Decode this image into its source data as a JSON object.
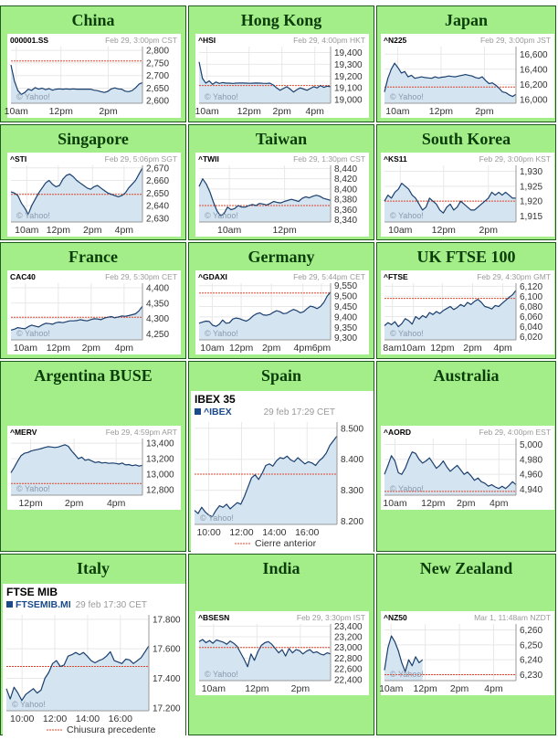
{
  "colors": {
    "cell_bg": "#a3ee88",
    "title": "#0b3d0b",
    "series_line": "#1a3f6e",
    "series_fill": "#d4e4f0",
    "prev_close": "#e2452b",
    "grid": "#e8e8e8",
    "meta_text": "#9a9a9a",
    "axis_text": "#333333",
    "ibex_link": "#1a4a8a"
  },
  "chart_data": [
    {
      "type": "area",
      "region": "China",
      "symbol": "000001.SS",
      "timestamp": "Feb 29, 3:00pm CST",
      "watermark": "© Yahoo!",
      "x_labels": [
        "10am",
        "12pm",
        "2pm"
      ],
      "x_ticks": [
        0.04,
        0.38,
        0.74
      ],
      "y_ticks": [
        2600,
        2650,
        2700,
        2750,
        2800
      ],
      "y_tick_labels": [
        "2,600",
        "2,650",
        "2,700",
        "2,750",
        "2,800"
      ],
      "ylim": [
        2590,
        2815
      ],
      "prev_close": 2758,
      "values": [
        2742,
        2678,
        2640,
        2625,
        2633,
        2646,
        2641,
        2652,
        2646,
        2650,
        2644,
        2648,
        2642,
        2646,
        2647,
        2646,
        2647,
        2646,
        2647,
        2646,
        2646,
        2646,
        2646,
        2646,
        2642,
        2640,
        2636,
        2633,
        2637,
        2647,
        2651,
        2647,
        2646,
        2638,
        2636,
        2640,
        2651,
        2666,
        2672
      ]
    },
    {
      "type": "area",
      "region": "Hong Kong",
      "symbol": "^HSI",
      "timestamp": "Feb 29, 4:00pm HKT",
      "watermark": "© Yahoo!",
      "x_labels": [
        "10am",
        "12pm",
        "2pm",
        "4pm"
      ],
      "x_ticks": [
        0.06,
        0.38,
        0.63,
        0.88
      ],
      "y_ticks": [
        19000,
        19100,
        19200,
        19300,
        19400
      ],
      "y_tick_labels": [
        "19,000",
        "19,100",
        "19,200",
        "19,300",
        "19,400"
      ],
      "ylim": [
        18970,
        19450
      ],
      "prev_close": 19120,
      "values": [
        19320,
        19180,
        19140,
        19160,
        19130,
        19150,
        19138,
        19145,
        19140,
        19140,
        19138,
        19140,
        19142,
        19141,
        19140,
        19139,
        19140,
        19141,
        19140,
        19139,
        19138,
        19140,
        19125,
        19100,
        19080,
        19095,
        19110,
        19090,
        19065,
        19085,
        19100,
        19090,
        19080,
        19095,
        19110,
        19100,
        19120,
        19105,
        19115,
        19110
      ]
    },
    {
      "type": "area",
      "region": "Japan",
      "symbol": "^N225",
      "timestamp": "Feb 29, 3:00pm JST",
      "watermark": "© Yahoo!",
      "x_labels": [
        "10am",
        "12pm",
        "2pm"
      ],
      "x_ticks": [
        0.1,
        0.43,
        0.76
      ],
      "y_ticks": [
        16000,
        16200,
        16400,
        16600
      ],
      "y_tick_labels": [
        "16,000",
        "16,200",
        "16,400",
        "16,600"
      ],
      "ylim": [
        15950,
        16700
      ],
      "prev_close": 16165,
      "values": [
        16100,
        16280,
        16400,
        16480,
        16420,
        16350,
        16370,
        16300,
        16320,
        16280,
        16290,
        16300,
        16290,
        16285,
        16280,
        16300,
        16285,
        16295,
        16300,
        16310,
        16305,
        16300,
        16310,
        16320,
        16330,
        16320,
        16310,
        16290,
        16280,
        16300,
        16250,
        16210,
        16220,
        16190,
        16150,
        16100,
        16090,
        16060,
        16040,
        16070
      ]
    },
    {
      "type": "area",
      "region": "Singapore",
      "symbol": "^STI",
      "timestamp": "Feb 29, 5:06pm SGT",
      "watermark": "© Yahoo!",
      "x_labels": [
        "10am",
        "12pm",
        "2pm",
        "4pm"
      ],
      "x_ticks": [
        0.12,
        0.36,
        0.62,
        0.86
      ],
      "y_ticks": [
        2630,
        2640,
        2650,
        2660,
        2670
      ],
      "y_tick_labels": [
        "2,630",
        "2,640",
        "2,650",
        "2,660",
        "2,670"
      ],
      "ylim": [
        2627,
        2672
      ],
      "prev_close": 2649,
      "values": [
        2651,
        2650,
        2648,
        2642,
        2638,
        2633,
        2640,
        2645,
        2650,
        2654,
        2658,
        2660,
        2657,
        2655,
        2656,
        2661,
        2664,
        2665,
        2663,
        2660,
        2658,
        2656,
        2654,
        2653,
        2655,
        2656,
        2654,
        2652,
        2650,
        2649,
        2648,
        2647,
        2648,
        2650,
        2654,
        2657,
        2660,
        2665,
        2670
      ]
    },
    {
      "type": "area",
      "region": "Taiwan",
      "symbol": "^TWII",
      "timestamp": "Feb 29, 1:30pm CST",
      "watermark": "© Yahoo!",
      "x_labels": [
        "10am",
        "12pm"
      ],
      "x_ticks": [
        0.23,
        0.65
      ],
      "y_ticks": [
        8340,
        8360,
        8380,
        8400,
        8420,
        8440
      ],
      "y_tick_labels": [
        "8,340",
        "8,360",
        "8,380",
        "8,400",
        "8,420",
        "8,440"
      ],
      "ylim": [
        8336,
        8446
      ],
      "prev_close": 8368,
      "values": [
        8405,
        8420,
        8410,
        8395,
        8375,
        8358,
        8348,
        8352,
        8365,
        8360,
        8362,
        8368,
        8365,
        8365,
        8368,
        8370,
        8368,
        8372,
        8371,
        8369,
        8372,
        8376,
        8374,
        8373,
        8376,
        8378,
        8380,
        8378,
        8376,
        8382,
        8385,
        8383,
        8386,
        8388,
        8386,
        8382,
        8380,
        8378
      ]
    },
    {
      "type": "area",
      "region": "South Korea",
      "symbol": "^KS11",
      "timestamp": "Feb 29, 3:00pm KST",
      "watermark": "© Yahoo!",
      "x_labels": [
        "10am",
        "12pm",
        "2pm"
      ],
      "x_ticks": [
        0.12,
        0.45,
        0.79
      ],
      "y_ticks": [
        1915,
        1920,
        1925,
        1930
      ],
      "y_tick_labels": [
        "1,915",
        "1,920",
        "1,925",
        "1,930"
      ],
      "ylim": [
        1913,
        1932
      ],
      "prev_close": 1920,
      "values": [
        1920,
        1922,
        1921,
        1923,
        1924,
        1926,
        1925,
        1924,
        1922,
        1921,
        1919,
        1917,
        1918,
        1921,
        1920,
        1919,
        1917,
        1916,
        1918,
        1919,
        1917,
        1918,
        1920,
        1919,
        1918,
        1917,
        1917,
        1918,
        1919,
        1920,
        1921,
        1923,
        1922,
        1923,
        1922,
        1923,
        1922,
        1921,
        1921
      ]
    },
    {
      "type": "area",
      "region": "France",
      "symbol": "CAC40",
      "timestamp": "Feb 29, 5:30pm CET",
      "watermark": "© Yahoo!",
      "x_labels": [
        "10am",
        "12pm",
        "2pm",
        "4pm"
      ],
      "x_ticks": [
        0.11,
        0.36,
        0.61,
        0.86
      ],
      "y_ticks": [
        4250,
        4300,
        4350,
        4400
      ],
      "y_tick_labels": [
        "4,250",
        "4,300",
        "4,350",
        "4,400"
      ],
      "ylim": [
        4230,
        4415
      ],
      "prev_close": 4304,
      "values": [
        4262,
        4265,
        4270,
        4268,
        4266,
        4273,
        4278,
        4275,
        4272,
        4279,
        4284,
        4283,
        4281,
        4286,
        4288,
        4286,
        4289,
        4292,
        4292,
        4293,
        4296,
        4294,
        4292,
        4296,
        4299,
        4298,
        4296,
        4301,
        4304,
        4306,
        4302,
        4305,
        4308,
        4307,
        4309,
        4312,
        4315,
        4325,
        4340
      ]
    },
    {
      "type": "area",
      "region": "Germany",
      "symbol": "^GDAXI",
      "timestamp": "Feb 29, 5:44pm CET",
      "watermark": "© Yahoo!",
      "x_labels": [
        "10am",
        "12pm",
        "2pm",
        "4pm",
        "6pm"
      ],
      "x_ticks": [
        0.1,
        0.32,
        0.55,
        0.79,
        0.93
      ],
      "y_ticks": [
        9300,
        9350,
        9400,
        9450,
        9500,
        9550
      ],
      "y_tick_labels": [
        "9,300",
        "9,350",
        "9,400",
        "9,450",
        "9,500",
        "9,550"
      ],
      "ylim": [
        9290,
        9562
      ],
      "prev_close": 9515,
      "values": [
        9370,
        9375,
        9380,
        9378,
        9360,
        9355,
        9365,
        9385,
        9370,
        9372,
        9390,
        9395,
        9392,
        9385,
        9380,
        9390,
        9405,
        9415,
        9420,
        9410,
        9408,
        9412,
        9422,
        9430,
        9425,
        9416,
        9418,
        9428,
        9436,
        9430,
        9420,
        9425,
        9440,
        9452,
        9448,
        9440,
        9450,
        9470,
        9500,
        9520
      ]
    },
    {
      "type": "area",
      "region": "UK FTSE 100",
      "symbol": "^FTSE",
      "timestamp": "Feb 29, 4:30pm GMT",
      "watermark": "© Yahoo!",
      "x_labels": [
        "8am",
        "10am",
        "12pm",
        "2pm",
        "4pm"
      ],
      "x_ticks": [
        0.06,
        0.22,
        0.44,
        0.67,
        0.9
      ],
      "y_ticks": [
        6020,
        6040,
        6060,
        6080,
        6100,
        6120
      ],
      "y_tick_labels": [
        "6,020",
        "6,040",
        "6,060",
        "6,080",
        "6,100",
        "6,120"
      ],
      "ylim": [
        6014,
        6126
      ],
      "prev_close": 6096,
      "values": [
        6042,
        6048,
        6044,
        6050,
        6040,
        6046,
        6056,
        6052,
        6045,
        6060,
        6055,
        6062,
        6058,
        6068,
        6064,
        6070,
        6066,
        6072,
        6076,
        6080,
        6074,
        6078,
        6084,
        6080,
        6088,
        6084,
        6090,
        6094,
        6088,
        6080,
        6078,
        6075,
        6082,
        6080,
        6086,
        6092,
        6098,
        6103,
        6112
      ]
    },
    {
      "type": "area",
      "region": "Argentina BUSE",
      "symbol": "^MERV",
      "timestamp": "Feb 29, 4:59pm ART",
      "watermark": "© Yahoo!",
      "x_labels": [
        "12pm",
        "2pm",
        "4pm"
      ],
      "x_ticks": [
        0.15,
        0.48,
        0.8
      ],
      "y_ticks": [
        12800,
        13000,
        13200,
        13400
      ],
      "y_tick_labels": [
        "12,800",
        "13,000",
        "13,200",
        "13,400"
      ],
      "ylim": [
        12730,
        13460
      ],
      "prev_close": 12880,
      "values": [
        13020,
        13090,
        13170,
        13240,
        13270,
        13280,
        13300,
        13310,
        13320,
        13330,
        13345,
        13355,
        13350,
        13345,
        13350,
        13365,
        13380,
        13360,
        13300,
        13250,
        13200,
        13220,
        13180,
        13190,
        13170,
        13150,
        13160,
        13145,
        13150,
        13140,
        13145,
        13140,
        13130,
        13145,
        13120,
        13125,
        13110,
        13120,
        13105,
        13115
      ]
    },
    {
      "type": "area",
      "region": "Spain",
      "symbol": "^IBEX",
      "name": "IBEX 35",
      "timestamp": "29 feb 17:29 CET",
      "watermark": "© Yahoo!",
      "legend": "Cierre anterior",
      "x_labels": [
        "10:00",
        "12:00",
        "14:00",
        "16:00"
      ],
      "x_ticks": [
        0.1,
        0.33,
        0.56,
        0.79
      ],
      "y_ticks": [
        8200,
        8300,
        8400,
        8500
      ],
      "y_tick_labels": [
        "8.200",
        "8.300",
        "8.400",
        "8.500"
      ],
      "ylim": [
        8190,
        8520
      ],
      "prev_close": 8352,
      "values": [
        8235,
        8225,
        8245,
        8230,
        8220,
        8215,
        8235,
        8250,
        8245,
        8255,
        8240,
        8250,
        8260,
        8255,
        8280,
        8310,
        8340,
        8350,
        8335,
        8355,
        8380,
        8385,
        8378,
        8395,
        8405,
        8402,
        8410,
        8398,
        8392,
        8405,
        8395,
        8385,
        8392,
        8388,
        8380,
        8395,
        8405,
        8420,
        8445,
        8460,
        8475
      ]
    },
    {
      "type": "area",
      "region": "Australia",
      "symbol": "^AORD",
      "timestamp": "Feb 29, 4:00pm EST",
      "watermark": "© Yahoo!",
      "x_labels": [
        "10am",
        "12pm",
        "2pm",
        "4pm"
      ],
      "x_ticks": [
        0.08,
        0.37,
        0.62,
        0.87
      ],
      "y_ticks": [
        4940,
        4960,
        4980,
        5000
      ],
      "y_tick_labels": [
        "4,940",
        "4,960",
        "4,980",
        "5,000"
      ],
      "ylim": [
        4932,
        5008
      ],
      "prev_close": 4937,
      "values": [
        4960,
        4972,
        4985,
        4978,
        4962,
        4960,
        4968,
        4980,
        4990,
        4988,
        4980,
        4975,
        4978,
        4982,
        4975,
        4968,
        4972,
        4978,
        4970,
        4964,
        4968,
        4972,
        4966,
        4960,
        4963,
        4958,
        4952,
        4955,
        4950,
        4948,
        4944,
        4946,
        4943,
        4941,
        4944,
        4941,
        4945,
        4950,
        4946
      ]
    },
    {
      "type": "area",
      "region": "Italy",
      "symbol": "FTSEMIB.MI",
      "name": "FTSE MIB",
      "timestamp": "29 feb 17:30 CET",
      "watermark": "© Yahoo!",
      "legend": "Chiusura precedente",
      "x_labels": [
        "10:00",
        "12:00",
        "14:00",
        "16:00"
      ],
      "x_ticks": [
        0.11,
        0.34,
        0.57,
        0.8
      ],
      "y_ticks": [
        17200,
        17400,
        17600,
        17800
      ],
      "y_tick_labels": [
        "17.200",
        "17.400",
        "17.600",
        "17.800"
      ],
      "ylim": [
        17180,
        17830
      ],
      "prev_close": 17480,
      "values": [
        17330,
        17260,
        17340,
        17300,
        17250,
        17290,
        17310,
        17330,
        17300,
        17320,
        17400,
        17440,
        17500,
        17520,
        17480,
        17490,
        17550,
        17560,
        17575,
        17560,
        17575,
        17550,
        17520,
        17505,
        17520,
        17530,
        17550,
        17580,
        17520,
        17510,
        17500,
        17530,
        17525,
        17500,
        17520,
        17540,
        17580,
        17620
      ]
    },
    {
      "type": "area",
      "region": "India",
      "symbol": "^BSESN",
      "timestamp": "Feb 29, 3:30pm IST",
      "watermark": "© Yahoo!",
      "x_labels": [
        "10am",
        "12pm",
        "2pm"
      ],
      "x_ticks": [
        0.11,
        0.44,
        0.77
      ],
      "y_ticks": [
        22400,
        22600,
        22800,
        23000,
        23200,
        23400
      ],
      "y_tick_labels": [
        "22,400",
        "22,600",
        "22,800",
        "23,000",
        "23,200",
        "23,400"
      ],
      "ylim": [
        22380,
        23440
      ],
      "prev_close": 23000,
      "values": [
        23110,
        23150,
        23090,
        23130,
        23080,
        23140,
        23120,
        23100,
        23060,
        23120,
        23080,
        23020,
        22900,
        22780,
        22640,
        22880,
        22760,
        22920,
        23040,
        23090,
        23110,
        23060,
        22980,
        22900,
        22960,
        22840,
        22980,
        22900,
        22960,
        22940,
        22880,
        22930,
        22960,
        22900,
        22920,
        22880,
        22860,
        22900,
        22880
      ]
    },
    {
      "type": "area",
      "region": "New Zealand",
      "symbol": "^NZ50",
      "timestamp": "Mar 1, 11:48am NZDT",
      "watermark": "© Yahoo!",
      "x_labels": [
        "10am",
        "12pm",
        "2pm",
        "4pm"
      ],
      "x_ticks": [
        0.05,
        0.31,
        0.57,
        0.83
      ],
      "y_ticks": [
        6230,
        6240,
        6250,
        6260
      ],
      "y_tick_labels": [
        "6,230",
        "6,240",
        "6,250",
        "6,260"
      ],
      "ylim": [
        6226,
        6264
      ],
      "prev_close": 6230,
      "values": [
        6233,
        6248,
        6256,
        6252,
        6246,
        6238,
        6232,
        6240,
        6236,
        6242,
        6238,
        6240
      ],
      "x_domain_points": 39
    }
  ]
}
